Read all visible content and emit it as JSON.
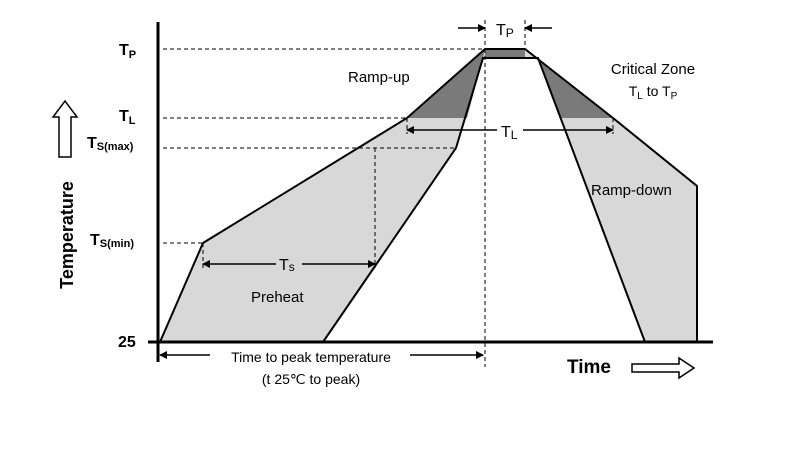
{
  "y_axis": {
    "title": "Temperature",
    "ticks": {
      "tp": {
        "main": "T",
        "sub": "P"
      },
      "tl": {
        "main": "T",
        "sub": "L"
      },
      "ts_max": {
        "main": "T",
        "sub": "S(max)"
      },
      "ts_min": {
        "main": "T",
        "sub": "S(min)"
      },
      "base": "25"
    }
  },
  "x_axis": {
    "title": "Time"
  },
  "zones": {
    "ramp_up": "Ramp-up",
    "ramp_down": "Ramp-down",
    "preheat": "Preheat",
    "critical_zone": {
      "line1": "Critical Zone",
      "line2_main_a": "T",
      "line2_sub_a": "L",
      "line2_mid": " to T",
      "line2_sub_b": "P"
    }
  },
  "intervals": {
    "tp": {
      "main": "T",
      "sub": "P"
    },
    "tl": {
      "main": "T",
      "sub": "L"
    },
    "ts": {
      "main": "T",
      "sub": "s"
    }
  },
  "time_to_peak": {
    "line1": "Time to peak temperature",
    "line2": "(t 25℃ to peak)"
  },
  "colors": {
    "light_fill": "#d8d8d8",
    "dark_fill": "#7a7a7a",
    "line": "#000000"
  }
}
